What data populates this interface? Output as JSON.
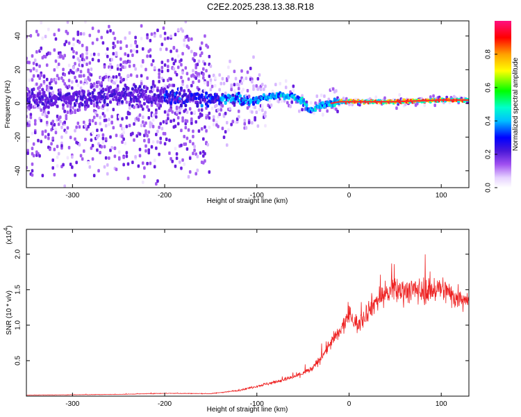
{
  "title": "C2E2.2025.238.13.38.R18",
  "colors": {
    "snr_line": "#ee2222",
    "axis": "#000000",
    "colormap": [
      "#ffffff",
      "#e0c8ff",
      "#8a2be2",
      "#3a1fd6",
      "#0000ff",
      "#00bfff",
      "#00ffcc",
      "#00ff00",
      "#ffff00",
      "#ffa500",
      "#ff0000"
    ]
  },
  "chart_data": [
    {
      "type": "heatmap",
      "xlabel": "Height of straight line (km)",
      "ylabel": "Frequency (Hz)",
      "xlim": [
        -350,
        130
      ],
      "ylim": [
        -50,
        49
      ],
      "x_ticks": [
        -300,
        -200,
        -100,
        0,
        100
      ],
      "y_ticks": [
        -40,
        -20,
        0,
        20,
        40
      ],
      "colorbar": {
        "label": "Normalized spectral amplitude",
        "range": [
          0,
          1
        ],
        "ticks": [
          0.0,
          0.2,
          0.4,
          0.6,
          0.8
        ]
      },
      "ridge": {
        "x": [
          -350,
          -300,
          -250,
          -200,
          -150,
          -100,
          -75,
          -60,
          -50,
          -45,
          -40,
          -30,
          -20,
          -10,
          0,
          50,
          100,
          130
        ],
        "y": [
          2,
          3,
          5,
          4,
          3,
          2,
          5,
          4,
          1,
          -3,
          -4,
          -1,
          0,
          1,
          1,
          1,
          2,
          2
        ]
      }
    },
    {
      "type": "line",
      "xlabel": "Height of straight line (km)",
      "ylabel": "SNR (10 * v/v)",
      "y_exponent": "(x10",
      "y_exponent_power": "4",
      "xlim": [
        -350,
        130
      ],
      "ylim": [
        0,
        23500
      ],
      "x_ticks": [
        -300,
        -200,
        -100,
        0,
        100
      ],
      "y_ticks": [
        0.5,
        1.0,
        1.5,
        2.0
      ],
      "envelope": {
        "x": [
          -350,
          -250,
          -200,
          -150,
          -120,
          -100,
          -80,
          -60,
          -40,
          -30,
          -20,
          -10,
          0,
          10,
          20,
          30,
          40,
          60,
          80,
          100,
          115,
          130
        ],
        "y": [
          150,
          250,
          400,
          350,
          800,
          1400,
          2000,
          2700,
          3800,
          5500,
          7500,
          9000,
          11500,
          10000,
          12000,
          13500,
          14500,
          15000,
          14800,
          15200,
          14000,
          13800
        ]
      }
    }
  ]
}
